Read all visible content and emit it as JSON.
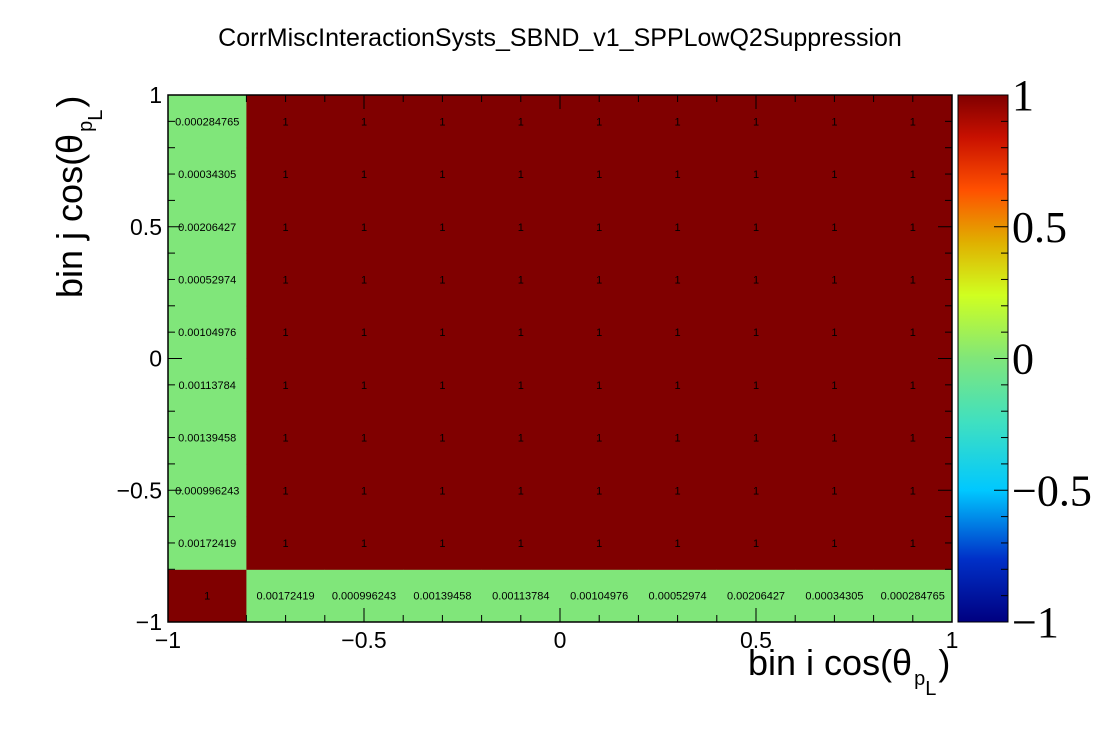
{
  "chart_data": {
    "type": "heatmap",
    "title": "CorrMiscInteractionSysts_SBND_v1_SPPLowQ2Suppression",
    "xlabel": "bin i cos(θ",
    "xlabel_sub": "p",
    "xlabel_sub2": "L",
    "xlabel_close": ")",
    "ylabel": "bin j cos(θ",
    "ylabel_sub": "p",
    "ylabel_sub2": "L",
    "ylabel_close": ")",
    "xlim": [
      -1,
      1
    ],
    "ylim": [
      -1,
      1
    ],
    "x_ticks": [
      -1,
      -0.5,
      0,
      0.5,
      1
    ],
    "y_ticks": [
      -1,
      -0.5,
      0,
      0.5,
      1
    ],
    "x_tick_labels": [
      "−1",
      "−0.5",
      "0",
      "0.5",
      "1"
    ],
    "y_tick_labels": [
      "−1",
      "−0.5",
      "0",
      "0.5",
      "1"
    ],
    "x_edges": [
      -1,
      -0.8,
      -0.6,
      -0.4,
      -0.2,
      0,
      0.2,
      0.4,
      0.6,
      0.8,
      1
    ],
    "y_edges": [
      -1,
      -0.8,
      -0.6,
      -0.4,
      -0.2,
      0,
      0.2,
      0.4,
      0.6,
      0.8,
      1
    ],
    "x_bin_edges": [
      -1,
      -0.8,
      -0.7,
      -0.6,
      -0.5,
      -0.4,
      -0.3,
      -0.2,
      -0.1,
      0,
      0.1,
      0.2,
      0.3,
      0.4,
      0.5,
      0.6,
      0.7,
      0.8,
      0.9,
      1
    ],
    "y_bin_edges": [
      -1,
      -0.8,
      -0.7,
      -0.6,
      -0.5,
      -0.4,
      -0.3,
      -0.2,
      -0.1,
      0,
      0.1,
      0.2,
      0.3,
      0.4,
      0.5,
      0.6,
      0.7,
      0.8,
      0.9,
      1
    ],
    "first_row_labels": [
      "1",
      "0.00172419",
      "0.000996243",
      "0.00139458",
      "0.00113784",
      "0.00104976",
      "0.00052974",
      "0.00206427",
      "0.00034305",
      "0.000284765"
    ],
    "first_col_labels": [
      "0.00172419",
      "0.000996243",
      "0.00139458",
      "0.00113784",
      "0.00104976",
      "0.00052974",
      "0.00206427",
      "0.00034305",
      "0.000284765"
    ],
    "first_row_values": [
      1,
      0.00172419,
      0.000996243,
      0.00139458,
      0.00113784,
      0.00104976,
      0.00052974,
      0.00206427,
      0.00034305,
      0.000284765
    ],
    "first_col_values": [
      0.00172419,
      0.000996243,
      0.00139458,
      0.00113784,
      0.00104976,
      0.00052974,
      0.00206427,
      0.00034305,
      0.000284765
    ],
    "bulk_value": 1,
    "bulk_label": "1",
    "bulk_x_centers": [
      -0.7,
      -0.5,
      -0.3,
      -0.1,
      0.1,
      0.3,
      0.5,
      0.7,
      0.9
    ],
    "bulk_y_centers": [
      -0.7,
      -0.5,
      -0.3,
      -0.1,
      0.1,
      0.3,
      0.5,
      0.7,
      0.9
    ],
    "first_row_x_centers": [
      -0.9,
      -0.7,
      -0.5,
      -0.3,
      -0.1,
      0.1,
      0.3,
      0.5,
      0.7,
      0.9
    ],
    "first_col_y_centers": [
      -0.7,
      -0.5,
      -0.3,
      -0.1,
      0.1,
      0.3,
      0.5,
      0.7,
      0.9
    ],
    "colorbar": {
      "range": [
        -1,
        1
      ],
      "ticks": [
        -1,
        -0.5,
        0,
        0.5,
        1
      ],
      "tick_labels": [
        "−1",
        "−0.5",
        "0",
        "0.5",
        "1"
      ]
    },
    "colors": {
      "high": "#800000",
      "zero": "#80e67a"
    },
    "grid": false,
    "legend": "colorbar-right"
  }
}
